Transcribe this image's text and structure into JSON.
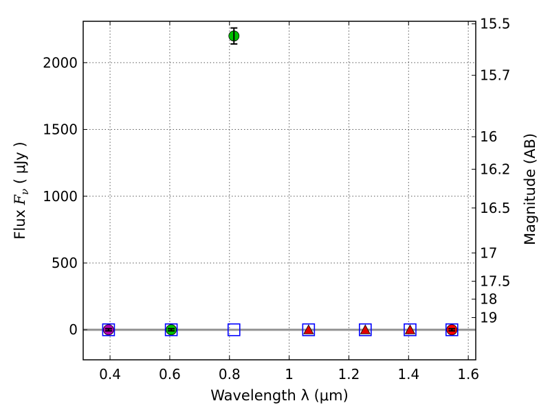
{
  "chart_data": {
    "type": "scatter",
    "title": "",
    "xlabel": "Wavelength  λ (μm)",
    "ylabel": "Flux  F_ν  ( μJy )",
    "ylabel_parts": {
      "pre": "Flux  ",
      "F": "F",
      "sub": "ν",
      "post": "  ( μJy )"
    },
    "y2label": "Magnitude (AB)",
    "xlim": [
      0.31,
      1.625
    ],
    "ylim": [
      -225,
      2310
    ],
    "xticks": [
      0.4,
      0.6,
      0.8,
      1.0,
      1.2,
      1.4,
      1.6
    ],
    "xtick_labels": [
      "0.4",
      "0.6",
      "0.8",
      "1",
      "1.2",
      "1.4",
      "1.6"
    ],
    "yticks": [
      0,
      500,
      1000,
      1500,
      2000
    ],
    "ytick_labels": [
      "0",
      "500",
      "1000",
      "1500",
      "2000"
    ],
    "y2ticks": [
      15.5,
      15.7,
      16,
      16.2,
      16.5,
      17,
      17.5,
      18,
      19
    ],
    "y2tick_labels": [
      "15.5",
      "15.7",
      "16",
      "16.2",
      "16.5",
      "17",
      "17.5",
      "18",
      "19"
    ],
    "grid": true,
    "zero_line": 0,
    "series": [
      {
        "marker": "circle",
        "color": "#b000b0",
        "points": [
          {
            "x": 0.395,
            "y": 0,
            "err": 8
          }
        ]
      },
      {
        "marker": "circle",
        "color": "#00bf00",
        "points": [
          {
            "x": 0.605,
            "y": 0,
            "err": 8
          },
          {
            "x": 0.815,
            "y": 2200,
            "err": 60
          }
        ]
      },
      {
        "marker": "triangle",
        "color": "#e00000",
        "points": [
          {
            "x": 1.065,
            "y": 0
          },
          {
            "x": 1.255,
            "y": 0
          },
          {
            "x": 1.405,
            "y": 0
          }
        ]
      },
      {
        "marker": "circle",
        "color": "#ff0000",
        "points": [
          {
            "x": 1.545,
            "y": 0,
            "err": 8
          }
        ]
      },
      {
        "marker": "square-open",
        "color": "#0000ff",
        "points": [
          {
            "x": 0.395,
            "y": 0
          },
          {
            "x": 0.605,
            "y": 0
          },
          {
            "x": 0.815,
            "y": 0
          },
          {
            "x": 1.065,
            "y": 0
          },
          {
            "x": 1.255,
            "y": 0
          },
          {
            "x": 1.405,
            "y": 0
          },
          {
            "x": 1.545,
            "y": 0
          }
        ]
      }
    ]
  }
}
